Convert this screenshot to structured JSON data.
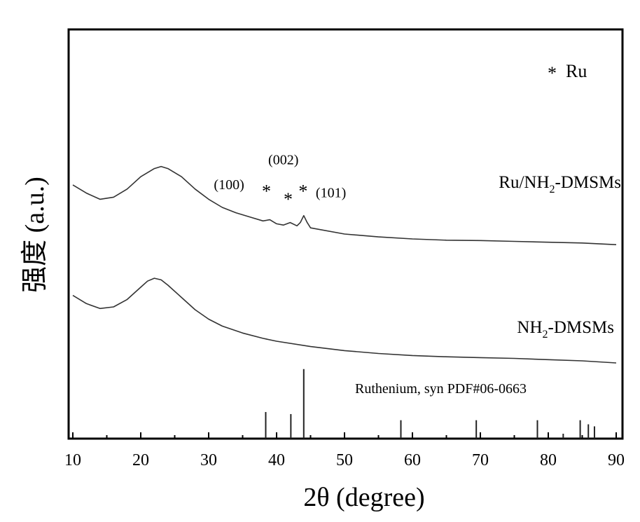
{
  "chart_data": {
    "type": "line",
    "xlabel": "2θ (degree)",
    "ylabel": "强度 (a.u.)",
    "xlim": [
      10,
      90
    ],
    "xticks": [
      "10",
      "20",
      "30",
      "40",
      "50",
      "60",
      "70",
      "80",
      "90"
    ],
    "y_ticks_shown": false,
    "grid": false,
    "legend": {
      "marker": "*",
      "label": "Ru",
      "position": "top-right"
    },
    "series": [
      {
        "name": "Ru/NH2-DMSMs",
        "label_main": "Ru/NH",
        "label_sub": "2",
        "label_tail": "-DMSMs",
        "points": [
          [
            10,
            0.62
          ],
          [
            12,
            0.6
          ],
          [
            14,
            0.585
          ],
          [
            16,
            0.59
          ],
          [
            18,
            0.61
          ],
          [
            20,
            0.64
          ],
          [
            22,
            0.66
          ],
          [
            23,
            0.665
          ],
          [
            24,
            0.66
          ],
          [
            26,
            0.64
          ],
          [
            28,
            0.61
          ],
          [
            30,
            0.585
          ],
          [
            32,
            0.565
          ],
          [
            34,
            0.552
          ],
          [
            36,
            0.542
          ],
          [
            38,
            0.532
          ],
          [
            39,
            0.535
          ],
          [
            40,
            0.525
          ],
          [
            41,
            0.522
          ],
          [
            42,
            0.528
          ],
          [
            43,
            0.52
          ],
          [
            43.5,
            0.528
          ],
          [
            44,
            0.545
          ],
          [
            44.5,
            0.528
          ],
          [
            45,
            0.515
          ],
          [
            50,
            0.5
          ],
          [
            55,
            0.493
          ],
          [
            60,
            0.488
          ],
          [
            65,
            0.485
          ],
          [
            70,
            0.484
          ],
          [
            75,
            0.482
          ],
          [
            80,
            0.48
          ],
          [
            85,
            0.478
          ],
          [
            90,
            0.474
          ]
        ]
      },
      {
        "name": "NH2-DMSMs",
        "label_main": "NH",
        "label_sub": "2",
        "label_tail": "-DMSMs",
        "points": [
          [
            10,
            0.35
          ],
          [
            12,
            0.33
          ],
          [
            14,
            0.318
          ],
          [
            16,
            0.322
          ],
          [
            18,
            0.34
          ],
          [
            20,
            0.37
          ],
          [
            21,
            0.385
          ],
          [
            22,
            0.392
          ],
          [
            23,
            0.388
          ],
          [
            24,
            0.375
          ],
          [
            26,
            0.345
          ],
          [
            28,
            0.315
          ],
          [
            30,
            0.292
          ],
          [
            32,
            0.275
          ],
          [
            35,
            0.258
          ],
          [
            38,
            0.245
          ],
          [
            40,
            0.238
          ],
          [
            45,
            0.225
          ],
          [
            50,
            0.215
          ],
          [
            55,
            0.208
          ],
          [
            60,
            0.203
          ],
          [
            65,
            0.2
          ],
          [
            70,
            0.198
          ],
          [
            75,
            0.196
          ],
          [
            80,
            0.193
          ],
          [
            85,
            0.19
          ],
          [
            90,
            0.185
          ]
        ]
      }
    ],
    "reference": {
      "label": "Ruthenium, syn   PDF#06-0663",
      "sticks": [
        [
          38.4,
          0.065
        ],
        [
          42.1,
          0.06
        ],
        [
          44.0,
          0.17
        ],
        [
          58.3,
          0.045
        ],
        [
          69.4,
          0.045
        ],
        [
          78.4,
          0.045
        ],
        [
          82.2,
          0.012
        ],
        [
          84.7,
          0.045
        ],
        [
          85.9,
          0.035
        ],
        [
          86.8,
          0.03
        ]
      ]
    },
    "annotations": [
      {
        "text": "(100)",
        "x": 33.0,
        "y": 0.61
      },
      {
        "text": "*",
        "x": 38.5,
        "y": 0.59
      },
      {
        "text": "(002)",
        "x": 41.0,
        "y": 0.67
      },
      {
        "text": "*",
        "x": 41.7,
        "y": 0.57
      },
      {
        "text": "*",
        "x": 43.9,
        "y": 0.59
      },
      {
        "text": "(101)",
        "x": 48.0,
        "y": 0.59
      }
    ]
  }
}
